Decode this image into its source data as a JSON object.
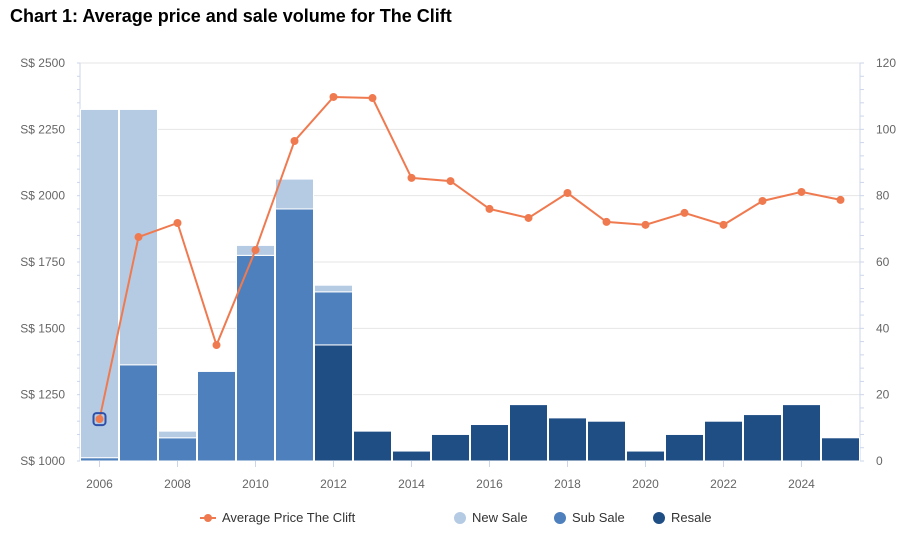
{
  "page": {
    "title": "Chart 1: Average price and sale volume for The Clift"
  },
  "colors": {
    "new_sale": "#b5cbe4",
    "sub_sale": "#4e80bd",
    "resale": "#1f4e85",
    "price": "#f07a50",
    "grid": "#e6e6e6"
  },
  "chart_data": {
    "type": "bar",
    "title": "Chart 1: Average price and sale volume for The Clift",
    "categories": [
      "2006",
      "2007",
      "2008",
      "2009",
      "2010",
      "2011",
      "2012",
      "2013",
      "2014",
      "2015",
      "2016",
      "2017",
      "2018",
      "2019",
      "2020",
      "2021",
      "2022",
      "2023",
      "2024",
      "2025"
    ],
    "x_tick_labels": [
      "2006",
      "2008",
      "2010",
      "2012",
      "2014",
      "2016",
      "2018",
      "2020",
      "2022",
      "2024"
    ],
    "left_axis": {
      "label": "",
      "ylim": [
        1000,
        2500
      ],
      "ticks": [
        1000,
        1250,
        1500,
        1750,
        2000,
        2250,
        2500
      ],
      "tick_labels": [
        "S$ 1000",
        "S$ 1250",
        "S$ 1500",
        "S$ 1750",
        "S$ 2000",
        "S$ 2250",
        "S$ 2500"
      ]
    },
    "right_axis": {
      "label": "",
      "ylim": [
        0,
        120
      ],
      "ticks": [
        0,
        20,
        40,
        60,
        80,
        100,
        120
      ],
      "tick_labels": [
        "0",
        "20",
        "40",
        "60",
        "80",
        "100",
        "120"
      ]
    },
    "series": [
      {
        "name": "Resale",
        "type": "bar",
        "stack": 0,
        "values": [
          0,
          0,
          0,
          0,
          0,
          0,
          35,
          9,
          3,
          8,
          11,
          17,
          13,
          12,
          3,
          8,
          12,
          14,
          17,
          7
        ]
      },
      {
        "name": "Sub Sale",
        "type": "bar",
        "stack": 1,
        "values": [
          1,
          29,
          7,
          27,
          62,
          76,
          16,
          0,
          0,
          0,
          0,
          0,
          0,
          0,
          0,
          0,
          0,
          0,
          0,
          0
        ]
      },
      {
        "name": "New Sale",
        "type": "bar",
        "stack": 2,
        "values": [
          105,
          77,
          2,
          0,
          3,
          9,
          2,
          0,
          0,
          0,
          0,
          0,
          0,
          0,
          0,
          0,
          0,
          0,
          0,
          0
        ]
      },
      {
        "name": "Average Price The Clift",
        "type": "line",
        "axis": "left",
        "values": [
          1158,
          1844,
          1897,
          1437,
          1795,
          2206,
          2372,
          2368,
          2067,
          2055,
          1950,
          1916,
          2010,
          1901,
          1890,
          1935,
          1890,
          1980,
          2014,
          1984
        ]
      }
    ],
    "highlighted_point": {
      "series": "Average Price The Clift",
      "category": "2006"
    },
    "grid": true,
    "legend": {
      "placement": "bottom",
      "entries": [
        "Average Price The Clift",
        "New Sale",
        "Sub Sale",
        "Resale"
      ]
    }
  }
}
